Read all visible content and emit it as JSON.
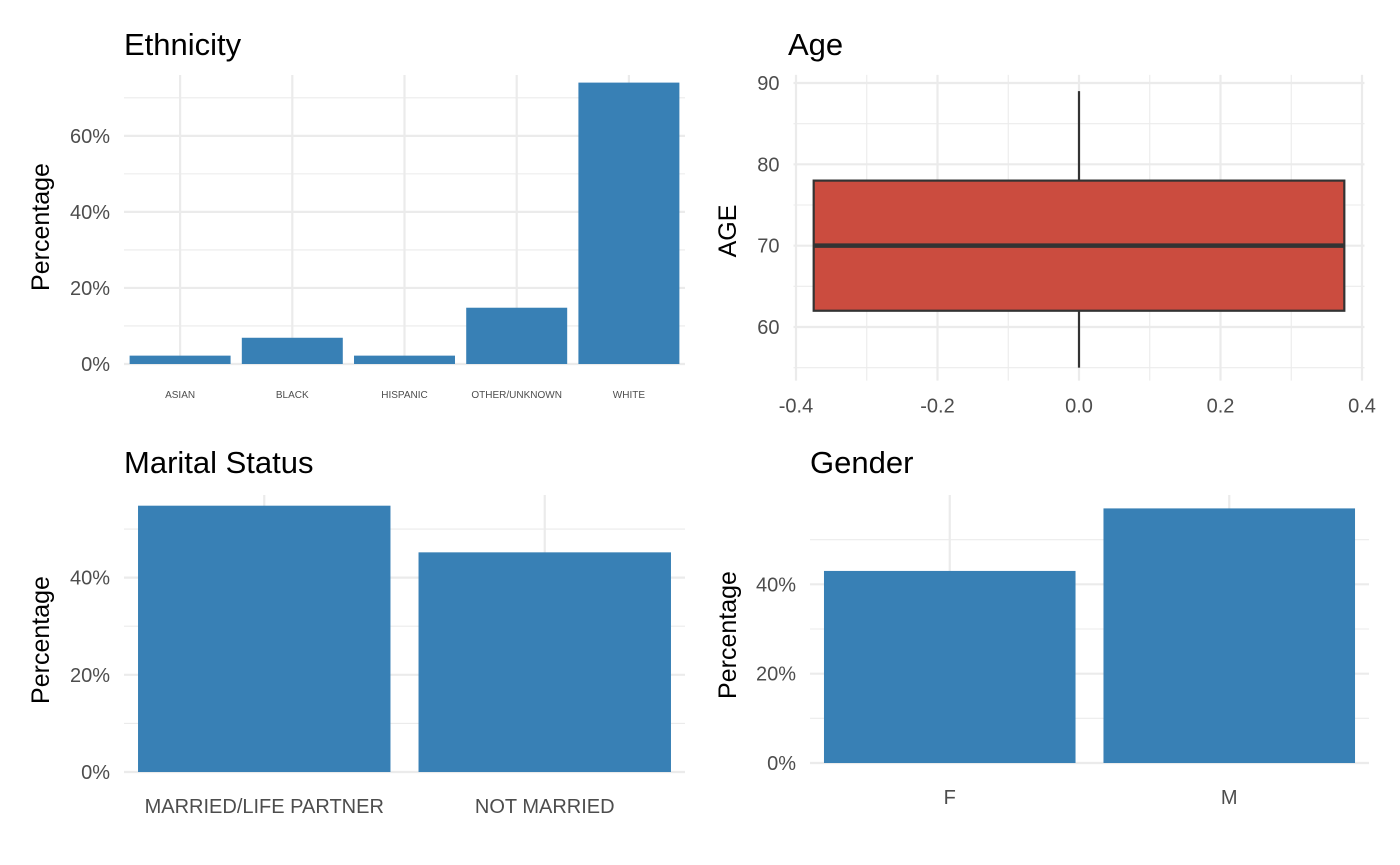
{
  "chart_data": [
    {
      "id": "ethnicity",
      "type": "bar",
      "title": "Ethnicity",
      "xlabel": "",
      "ylabel": "Percentage",
      "categories": [
        "ASIAN",
        "BLACK",
        "HISPANIC",
        "OTHER/UNKNOWN",
        "WHITE"
      ],
      "values": [
        2.2,
        6.9,
        2.2,
        14.8,
        74.0
      ],
      "ylim": [
        0,
        76
      ],
      "yticks": [
        0,
        20,
        40,
        60
      ],
      "ytick_labels": [
        "0%",
        "20%",
        "40%",
        "60%"
      ],
      "bar_color": "#3880B5",
      "grid": true
    },
    {
      "id": "age",
      "type": "boxplot",
      "title": "Age",
      "xlabel": "",
      "ylabel": "AGE",
      "xlim": [
        -0.4,
        0.4
      ],
      "ylim": [
        55,
        90
      ],
      "xticks": [
        -0.4,
        -0.2,
        0.0,
        0.2,
        0.4
      ],
      "xtick_labels": [
        "-0.4",
        "-0.2",
        "0.0",
        "0.2",
        "0.4"
      ],
      "yticks": [
        60,
        70,
        80,
        90
      ],
      "ytick_labels": [
        "60",
        "70",
        "80",
        "90"
      ],
      "box": {
        "x_min": -0.375,
        "x_max": 0.375,
        "whisker_low": 55,
        "q1": 62,
        "median": 70,
        "q3": 78,
        "whisker_high": 89
      },
      "fill_color": "#CB4C3F",
      "grid": true
    },
    {
      "id": "marital",
      "type": "bar",
      "title": "Marital Status",
      "xlabel": "",
      "ylabel": "Percentage",
      "categories": [
        "MARRIED/LIFE PARTNER",
        "NOT MARRIED"
      ],
      "values": [
        54.8,
        45.2
      ],
      "ylim": [
        0,
        57
      ],
      "yticks": [
        0,
        20,
        40
      ],
      "ytick_labels": [
        "0%",
        "20%",
        "40%"
      ],
      "bar_color": "#3880B5",
      "grid": true
    },
    {
      "id": "gender",
      "type": "bar",
      "title": "Gender",
      "xlabel": "",
      "ylabel": "Percentage",
      "categories": [
        "F",
        "M"
      ],
      "values": [
        43.0,
        57.0
      ],
      "ylim": [
        0,
        60
      ],
      "yticks": [
        0,
        20,
        40
      ],
      "ytick_labels": [
        "0%",
        "20%",
        "40%"
      ],
      "bar_color": "#3880B5",
      "grid": true
    }
  ]
}
